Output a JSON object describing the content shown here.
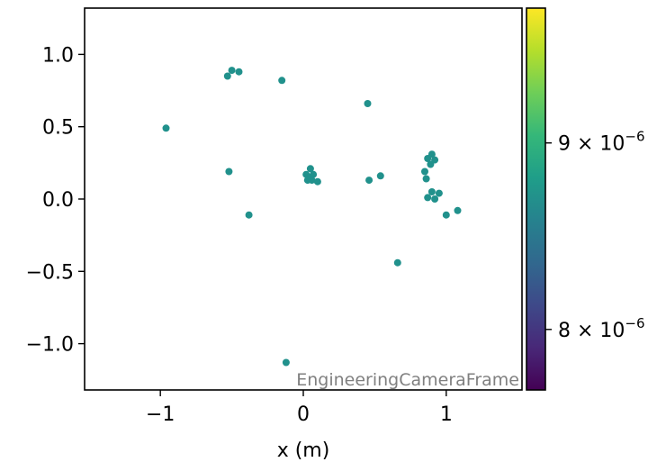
{
  "chart_data": {
    "type": "scatter",
    "title": "",
    "xlabel": "x  (m)",
    "ylabel": "",
    "xlim": [
      -1.53,
      1.53
    ],
    "ylim": [
      -1.32,
      1.32
    ],
    "x_ticks": [
      {
        "value": -1,
        "label": "−1"
      },
      {
        "value": 0,
        "label": "0"
      },
      {
        "value": 1,
        "label": "1"
      }
    ],
    "y_ticks": [
      {
        "value": 1.0,
        "label": "1.0"
      },
      {
        "value": 0.5,
        "label": "0.5"
      },
      {
        "value": 0.0,
        "label": "0.0"
      },
      {
        "value": -0.5,
        "label": "−0.5"
      },
      {
        "value": -1.0,
        "label": "−1.0"
      }
    ],
    "annotation": "EngineeringCameraFrame",
    "marker_color": "#21918c",
    "points": [
      [
        -0.96,
        0.49
      ],
      [
        -0.53,
        0.85
      ],
      [
        -0.5,
        0.89
      ],
      [
        -0.45,
        0.88
      ],
      [
        -0.15,
        0.82
      ],
      [
        0.45,
        0.66
      ],
      [
        -0.52,
        0.19
      ],
      [
        -0.38,
        -0.11
      ],
      [
        0.02,
        0.17
      ],
      [
        0.05,
        0.21
      ],
      [
        0.04,
        0.15
      ],
      [
        0.07,
        0.17
      ],
      [
        0.06,
        0.13
      ],
      [
        0.1,
        0.12
      ],
      [
        0.03,
        0.13
      ],
      [
        0.46,
        0.13
      ],
      [
        0.54,
        0.16
      ],
      [
        0.87,
        0.28
      ],
      [
        0.9,
        0.31
      ],
      [
        0.92,
        0.27
      ],
      [
        0.89,
        0.24
      ],
      [
        0.85,
        0.19
      ],
      [
        0.86,
        0.14
      ],
      [
        0.87,
        0.01
      ],
      [
        0.9,
        0.05
      ],
      [
        0.92,
        0.0
      ],
      [
        0.95,
        0.04
      ],
      [
        1.0,
        -0.11
      ],
      [
        1.08,
        -0.08
      ],
      [
        0.66,
        -0.44
      ],
      [
        -0.12,
        -1.13
      ]
    ],
    "colorbar": {
      "colormap": "viridis",
      "scale": "log",
      "range": [
        7.7e-06,
        9.8e-06
      ],
      "ticks": [
        {
          "value": 8e-06,
          "label_mantissa": "8",
          "label_times": "×",
          "label_base": "10",
          "label_exp": "−6"
        },
        {
          "value": 9e-06,
          "label_mantissa": "9",
          "label_times": "×",
          "label_base": "10",
          "label_exp": "−6"
        }
      ],
      "colors": [
        "#440154",
        "#482878",
        "#3e4989",
        "#31688e",
        "#26828e",
        "#1f9e89",
        "#35b779",
        "#6ece58",
        "#b5de2b",
        "#fde725"
      ]
    }
  }
}
